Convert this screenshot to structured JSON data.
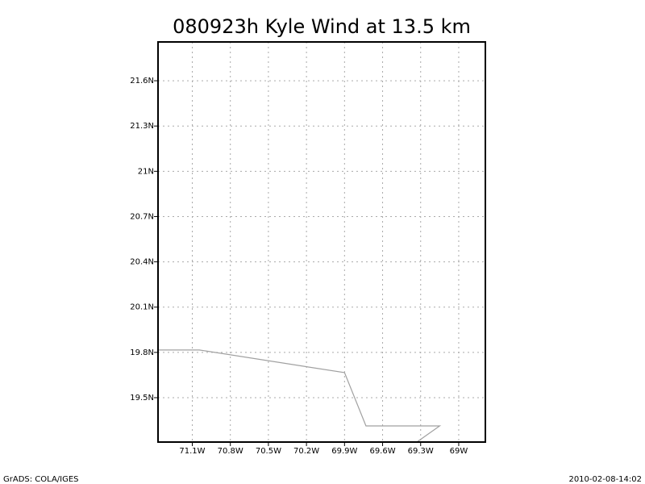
{
  "chart_data": {
    "type": "line",
    "title": "080923h Kyle Wind at 13.5 km",
    "x": [
      -71.37,
      -71.044,
      -69.9,
      -69.731,
      -69.15,
      -69.33
    ],
    "values": [
      19.816,
      19.816,
      19.666,
      19.313,
      19.313,
      19.206
    ],
    "color": "#a0a0a0",
    "xlim": [
      -71.37,
      -68.79
    ],
    "ylim": [
      19.206,
      21.857
    ],
    "xticks": [
      {
        "value": -71.1,
        "label": "71.1W"
      },
      {
        "value": -70.8,
        "label": "70.8W"
      },
      {
        "value": -70.5,
        "label": "70.5W"
      },
      {
        "value": -70.2,
        "label": "70.2W"
      },
      {
        "value": -69.9,
        "label": "69.9W"
      },
      {
        "value": -69.6,
        "label": "69.6W"
      },
      {
        "value": -69.3,
        "label": "69.3W"
      },
      {
        "value": -69,
        "label": "69W"
      }
    ],
    "yticks": [
      {
        "value": 19.5,
        "label": "19.5N"
      },
      {
        "value": 19.8,
        "label": "19.8N"
      },
      {
        "value": 20.1,
        "label": "20.1N"
      },
      {
        "value": 20.4,
        "label": "20.4N"
      },
      {
        "value": 20.7,
        "label": "20.7N"
      },
      {
        "value": 21,
        "label": "21N"
      },
      {
        "value": 21.3,
        "label": "21.3N"
      },
      {
        "value": 21.6,
        "label": "21.6N"
      }
    ],
    "grid": true,
    "footer_left": "GrADS: COLA/IGES",
    "footer_right": "2010-02-08-14:02"
  }
}
